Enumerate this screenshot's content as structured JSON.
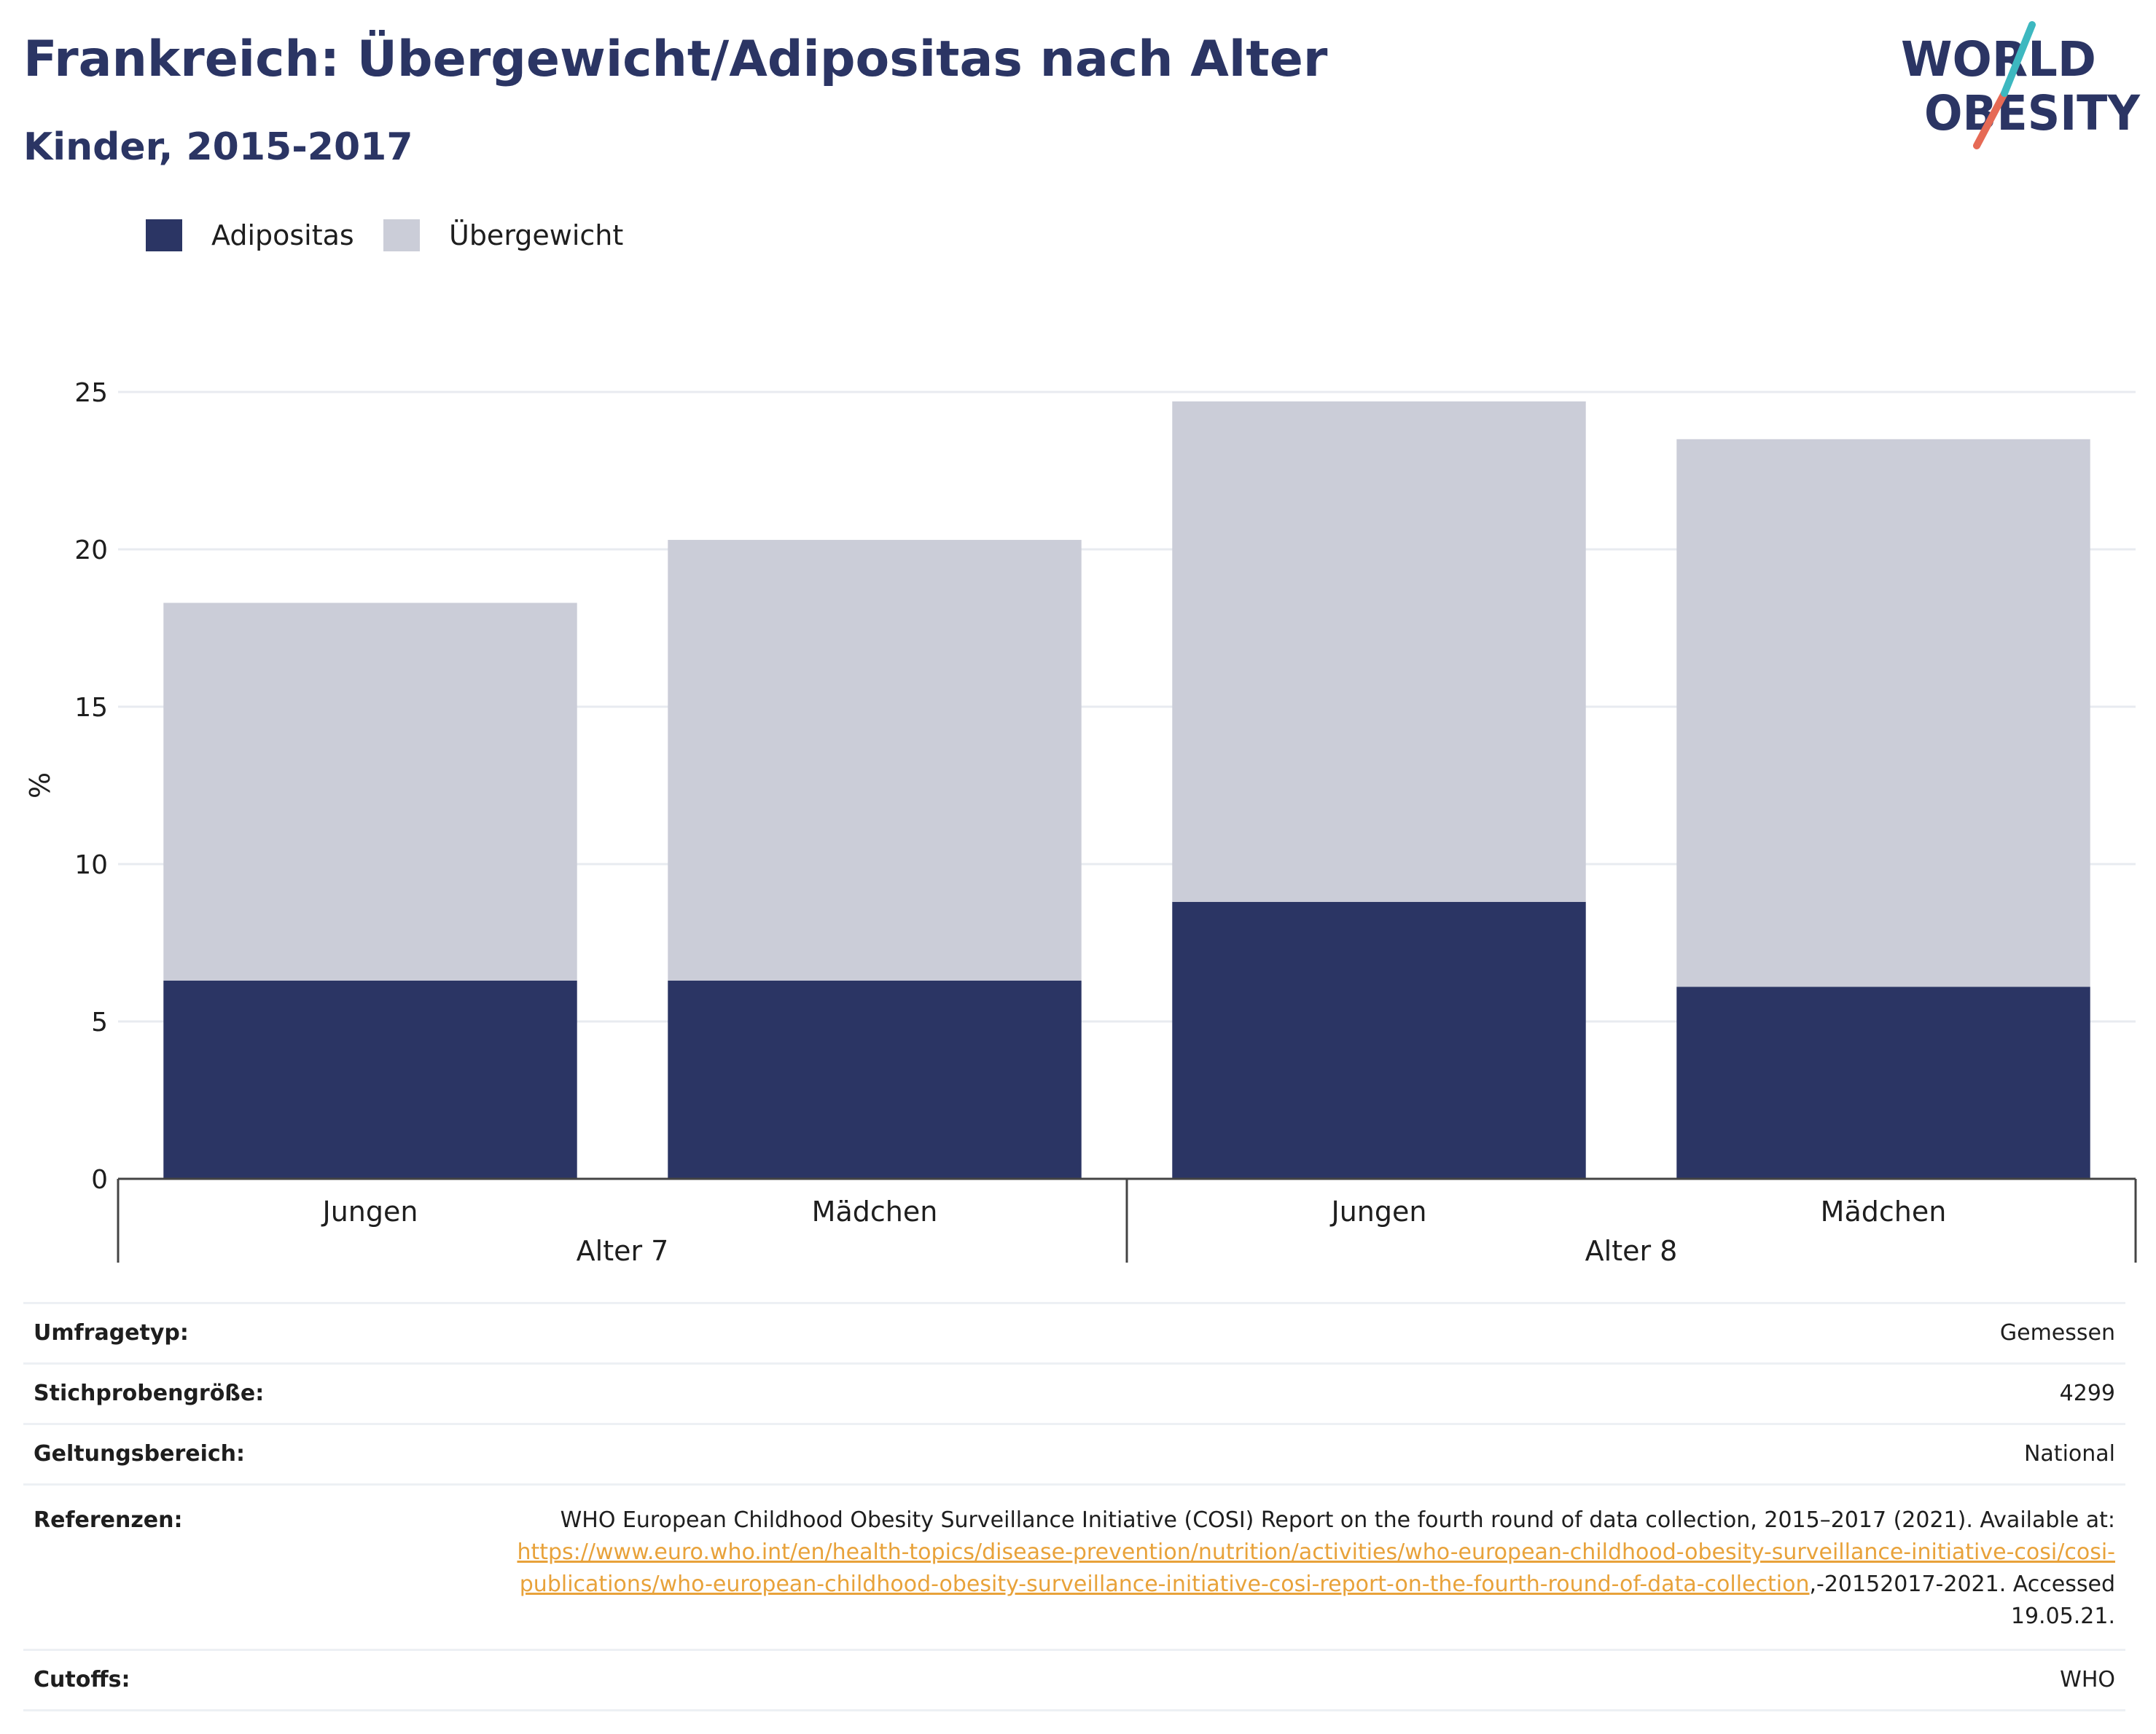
{
  "title": "Frankreich: Übergewicht/Adipositas nach Alter",
  "subtitle": "Kinder, 2015-2017",
  "logo": {
    "line1": "WORLD",
    "line2": "OBESITY",
    "colors": {
      "text": "#2b3564",
      "slash_top": "#3db8c0",
      "slash_bottom": "#e66a55"
    }
  },
  "legend": [
    {
      "label": "Adipositas",
      "color": "#2b3564"
    },
    {
      "label": "Übergewicht",
      "color": "#cbcdd8"
    }
  ],
  "chart_data": {
    "type": "bar",
    "stacked": true,
    "ylabel": "%",
    "ylim": [
      0,
      25
    ],
    "yticks": [
      0,
      5,
      10,
      15,
      20,
      25
    ],
    "grid": true,
    "legend_position": "top-left",
    "groups": [
      {
        "label": "Alter 7",
        "categories": [
          "Jungen",
          "Mädchen"
        ]
      },
      {
        "label": "Alter 8",
        "categories": [
          "Jungen",
          "Mädchen"
        ]
      }
    ],
    "categories": [
      "Jungen",
      "Mädchen",
      "Jungen",
      "Mädchen"
    ],
    "series": [
      {
        "name": "Adipositas",
        "color": "#2b3564",
        "values": [
          6.3,
          6.3,
          8.8,
          6.1
        ]
      },
      {
        "name": "Übergewicht",
        "color": "#cbcdd8",
        "values": [
          12.0,
          14.0,
          15.9,
          17.4
        ]
      }
    ]
  },
  "info": {
    "survey_type": {
      "label": "Umfragetyp:",
      "value": "Gemessen"
    },
    "sample_size": {
      "label": "Stichprobengröße:",
      "value": "4299"
    },
    "scope": {
      "label": "Geltungsbereich:",
      "value": "National"
    },
    "references": {
      "label": "Referenzen:",
      "text_before": "WHO European Childhood Obesity Surveillance Initiative (COSI) Report on the fourth round of data collection, 2015–2017 (2021). Available at: ",
      "link": "https://www.euro.who.int/en/health-topics/disease-prevention/nutrition/activities/who-european-childhood-obesity-surveillance-initiative-cosi/cosi-publications/who-european-childhood-obesity-surveillance-initiative-cosi-report-on-the-fourth-round-of-data-collection",
      "text_after": ",-20152017-2021. Accessed 19.05.21."
    },
    "cutoffs": {
      "label": "Cutoffs:",
      "value": "WHO"
    }
  }
}
